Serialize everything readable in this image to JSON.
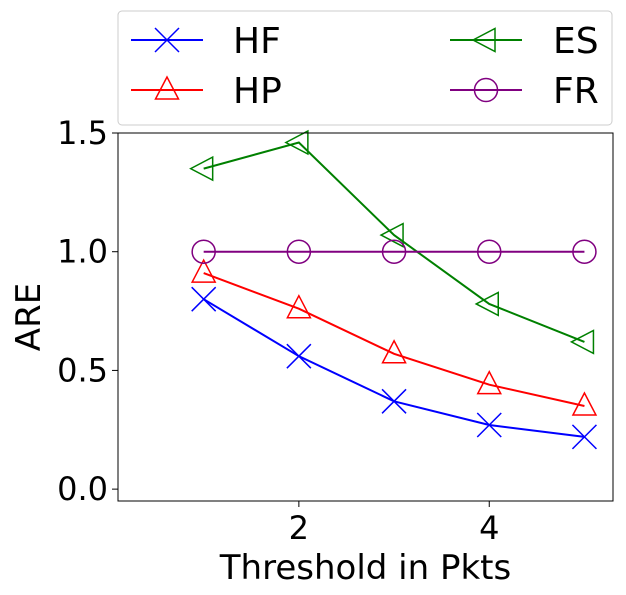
{
  "chart_data": {
    "type": "line",
    "title": "",
    "xlabel": "Threshold in Pkts",
    "ylabel": "ARE",
    "x": [
      1,
      2,
      3,
      4,
      5
    ],
    "xlim": [
      0.1,
      5.3
    ],
    "ylim": [
      -0.05,
      1.5
    ],
    "xticks": [
      2,
      4
    ],
    "yticks": [
      0.0,
      0.5,
      1.0,
      1.5
    ],
    "xtick_labels": [
      "2",
      "4"
    ],
    "ytick_labels": [
      "0.0",
      "0.5",
      "1.0",
      "1.5"
    ],
    "grid": false,
    "legend_position": "top",
    "series": [
      {
        "name": "HF",
        "color": "#0000ff",
        "marker": "x-icon",
        "values": [
          0.8,
          0.56,
          0.37,
          0.27,
          0.22
        ]
      },
      {
        "name": "HP",
        "color": "#ff0000",
        "marker": "triangle-up-icon",
        "values": [
          0.91,
          0.76,
          0.57,
          0.44,
          0.35
        ]
      },
      {
        "name": "ES",
        "color": "#008000",
        "marker": "triangle-left-icon",
        "values": [
          1.35,
          1.46,
          1.07,
          0.78,
          0.62
        ]
      },
      {
        "name": "FR",
        "color": "#800080",
        "marker": "circle-icon",
        "values": [
          1.0,
          1.0,
          1.0,
          1.0,
          1.0
        ]
      }
    ]
  }
}
